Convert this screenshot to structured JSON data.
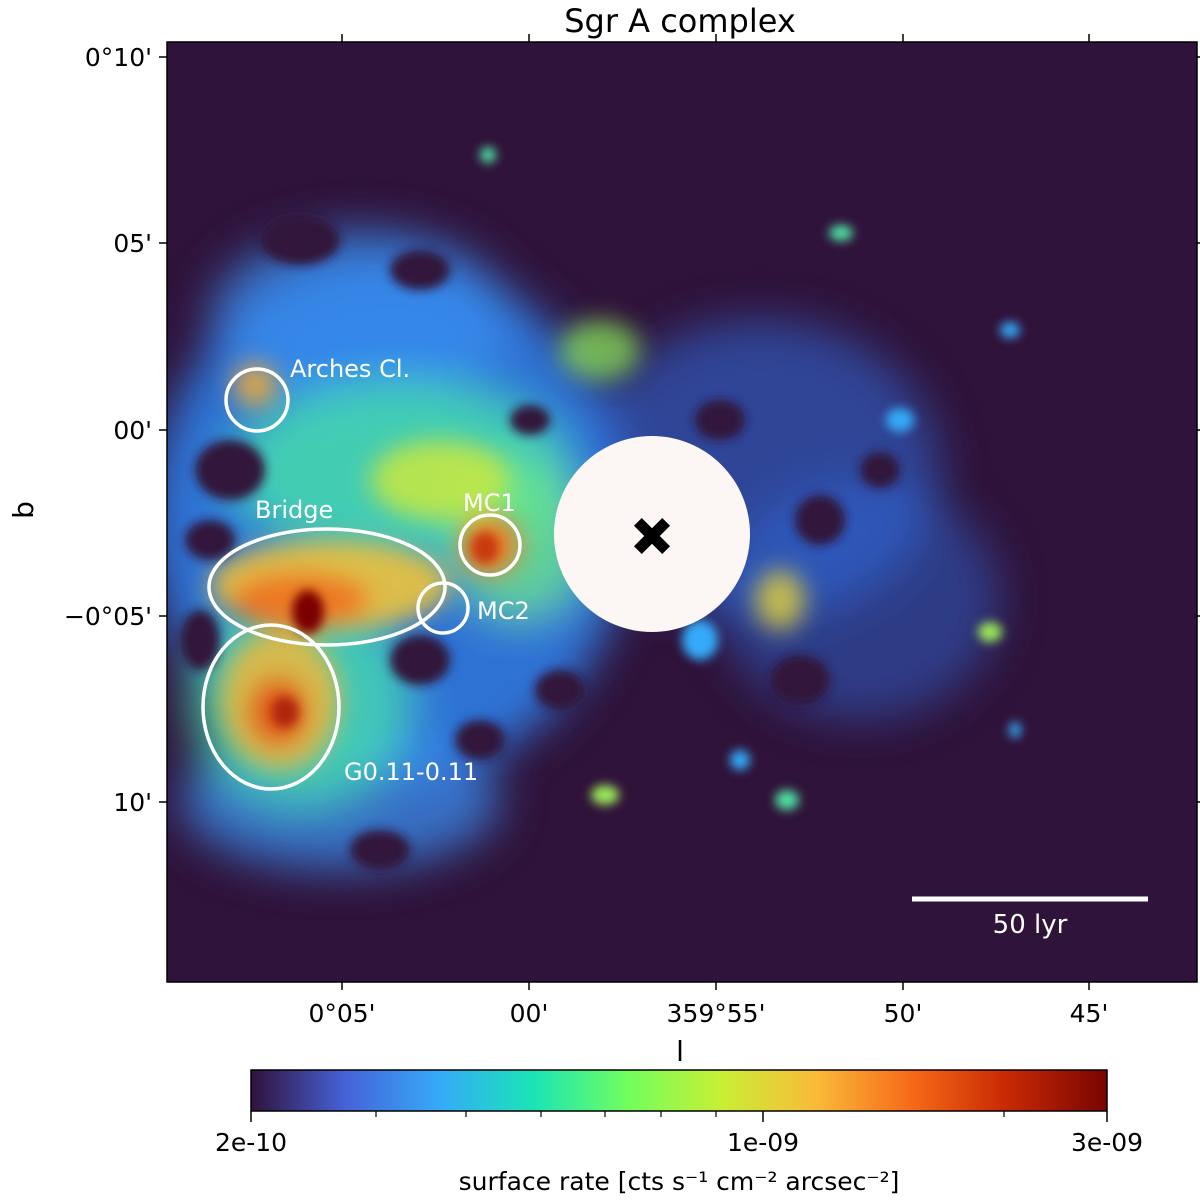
{
  "chart_data": {
    "type": "heatmap",
    "title": "Sgr A complex",
    "xlabel": "l",
    "ylabel": "b",
    "x_ticks": [
      "0°05'",
      "00'",
      "359°55'",
      "50'",
      "45'"
    ],
    "y_ticks": [
      "0°10'",
      "05'",
      "00'",
      "−0°05'",
      "10'"
    ],
    "annotations": [
      {
        "label": "Arches Cl."
      },
      {
        "label": "Bridge"
      },
      {
        "label": "MC1"
      },
      {
        "label": "MC2"
      },
      {
        "label": "G0.11-0.11"
      }
    ],
    "marker": "cross",
    "scale_bar": "50 lyr",
    "colorbar": {
      "label": "surface rate [cts s⁻¹ cm⁻² arcsec⁻²]",
      "scale": "log",
      "min": 2e-10,
      "max": 3e-09,
      "tick_labels": [
        "2e-10",
        "1e-09",
        "3e-09"
      ],
      "colors": [
        "#30123b",
        "#4662d7",
        "#36aaf9",
        "#1ae4b6",
        "#72fe5e",
        "#c8ef34",
        "#faba39",
        "#f66b19",
        "#ca2a04",
        "#7a0403"
      ]
    },
    "background_color": "#30133a"
  }
}
